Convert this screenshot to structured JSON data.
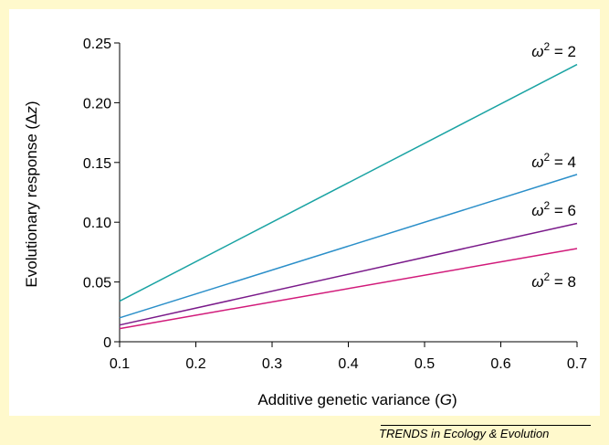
{
  "chart_data": {
    "type": "line",
    "xlabel_text": "Additive genetic variance (",
    "xlabel_var": "G",
    "xlabel_close": ")",
    "ylabel_text": "Evolutionary response (Δ",
    "ylabel_var": "z",
    "ylabel_close": ")",
    "xlim": [
      0.1,
      0.7
    ],
    "ylim": [
      0,
      0.25
    ],
    "x_ticks": [
      0.1,
      0.2,
      0.3,
      0.4,
      0.5,
      0.6,
      0.7
    ],
    "x_tick_labels": [
      "0.1",
      "0.2",
      "0.3",
      "0.4",
      "0.5",
      "0.6",
      "0.7"
    ],
    "y_ticks": [
      0,
      0.05,
      0.1,
      0.15,
      0.2,
      0.25
    ],
    "y_tick_labels": [
      "0",
      "0.05",
      "0.10",
      "0.15",
      "0.20",
      "0.25"
    ],
    "grid": false,
    "legend": "none",
    "series": [
      {
        "name": "ω² = 2",
        "label_omega": "ω",
        "label_rest": " = 2",
        "color": "#1aa3a3",
        "x": [
          0.1,
          0.7
        ],
        "y": [
          0.034,
          0.232
        ]
      },
      {
        "name": "ω² = 4",
        "label_omega": "ω",
        "label_rest": " = 4",
        "color": "#2b8fc9",
        "x": [
          0.1,
          0.7
        ],
        "y": [
          0.02,
          0.14
        ]
      },
      {
        "name": "ω² = 6",
        "label_omega": "ω",
        "label_rest": " = 6",
        "color": "#7a1a8a",
        "x": [
          0.1,
          0.7
        ],
        "y": [
          0.014,
          0.099
        ]
      },
      {
        "name": "ω² = 8",
        "label_omega": "ω",
        "label_rest": " = 8",
        "color": "#d11a7a",
        "x": [
          0.1,
          0.7
        ],
        "y": [
          0.011,
          0.078
        ]
      }
    ]
  },
  "footer": {
    "source": "TRENDS in Ecology & Evolution"
  },
  "colors": {
    "background": "#fff9cc",
    "plot_background": "#ffffff",
    "axis": "#000000"
  }
}
